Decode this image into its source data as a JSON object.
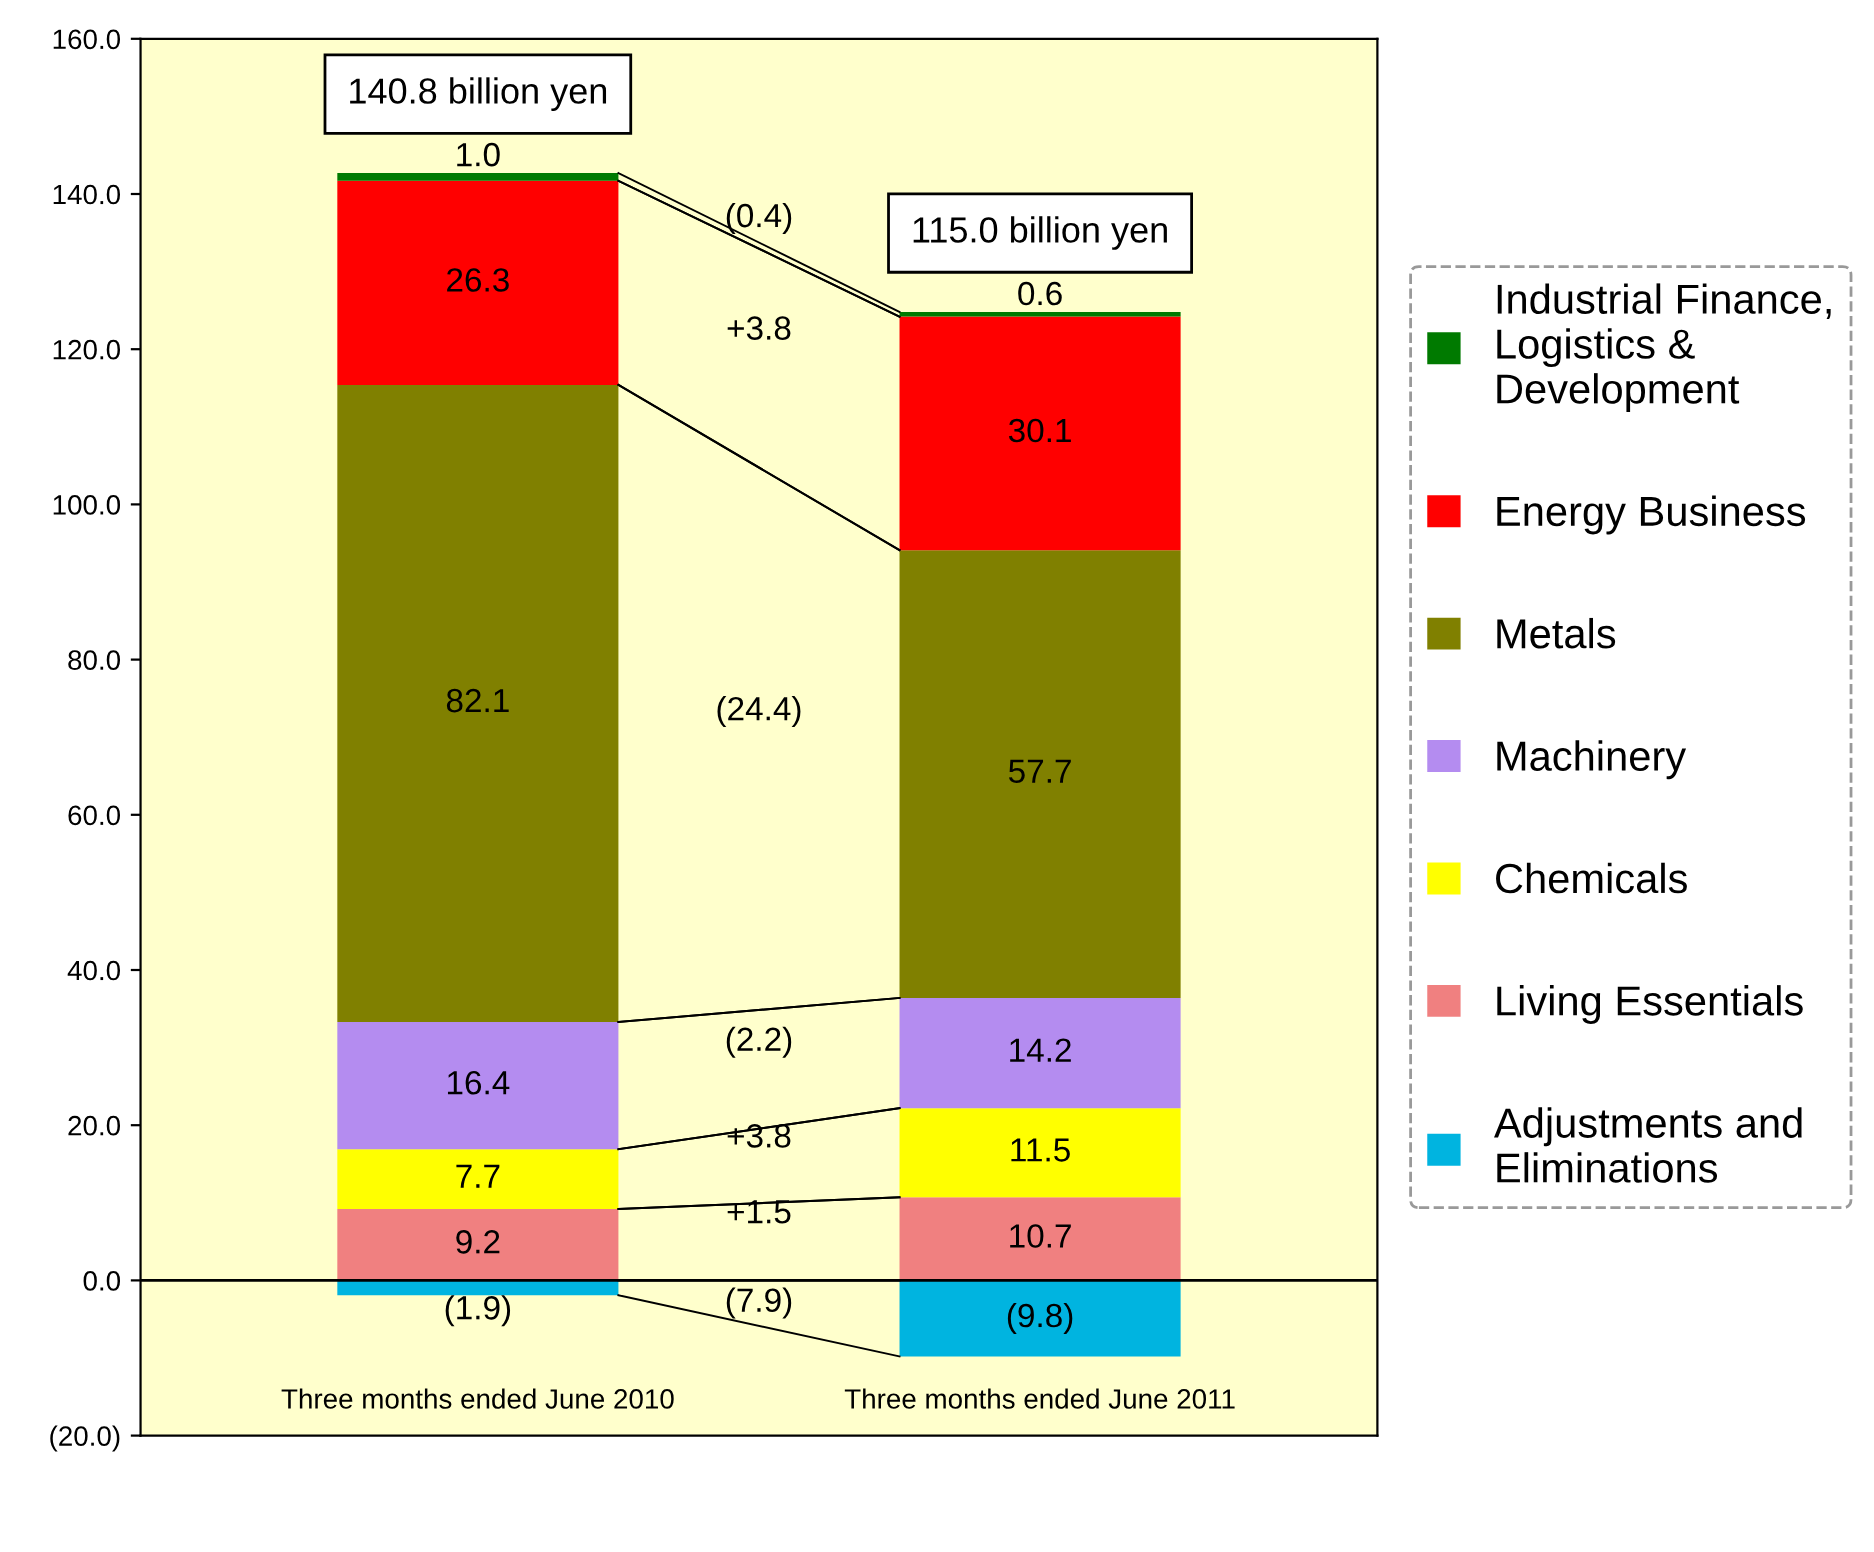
{
  "chart_data": {
    "type": "bar",
    "stacked": true,
    "categories": [
      "Three months ended June 2010",
      "Three months ended June 2011"
    ],
    "series": [
      {
        "name": "Adjustments and Eliminations",
        "color": "#00b4e0",
        "values": [
          -1.9,
          -9.8
        ],
        "value_labels": [
          "(1.9)",
          "(9.8)"
        ]
      },
      {
        "name": "Living Essentials",
        "color": "#f08080",
        "values": [
          9.2,
          10.7
        ],
        "value_labels": [
          "9.2",
          "10.7"
        ]
      },
      {
        "name": "Chemicals",
        "color": "#ffff00",
        "values": [
          7.7,
          11.5
        ],
        "value_labels": [
          "7.7",
          "11.5"
        ]
      },
      {
        "name": "Machinery",
        "color": "#b48cf0",
        "values": [
          16.4,
          14.2
        ],
        "value_labels": [
          "16.4",
          "14.2"
        ]
      },
      {
        "name": "Metals",
        "color": "#808000",
        "values": [
          82.1,
          57.7
        ],
        "value_labels": [
          "82.1",
          "57.7"
        ]
      },
      {
        "name": "Energy Business",
        "color": "#ff0000",
        "values": [
          26.3,
          30.1
        ],
        "value_labels": [
          "26.3",
          "30.1"
        ]
      },
      {
        "name": "Industrial Finance, Logistics & Development",
        "color": "#007a00",
        "values": [
          1.0,
          0.6
        ],
        "value_labels": [
          "1.0",
          "0.6"
        ]
      }
    ],
    "totals": [
      "140.8 billion yen",
      "115.0 billion yen"
    ],
    "annotations": [
      "(7.9)",
      "+1.5",
      "+3.8",
      "(2.2)",
      "(24.4)",
      "+3.8",
      "(0.4)"
    ],
    "ylim": [
      -20,
      160
    ],
    "yticks": [
      {
        "value": -20,
        "label": "(20.0)"
      },
      {
        "value": 0,
        "label": "0.0"
      },
      {
        "value": 20,
        "label": "20.0"
      },
      {
        "value": 40,
        "label": "40.0"
      },
      {
        "value": 60,
        "label": "60.0"
      },
      {
        "value": 80,
        "label": "80.0"
      },
      {
        "value": 100,
        "label": "100.0"
      },
      {
        "value": 120,
        "label": "120.0"
      },
      {
        "value": 140,
        "label": "140.0"
      },
      {
        "value": 160,
        "label": "160.0"
      }
    ],
    "ref_lines": [
      {
        "axis": "y",
        "value": 0,
        "color": "#000000"
      }
    ],
    "legend": "right"
  }
}
